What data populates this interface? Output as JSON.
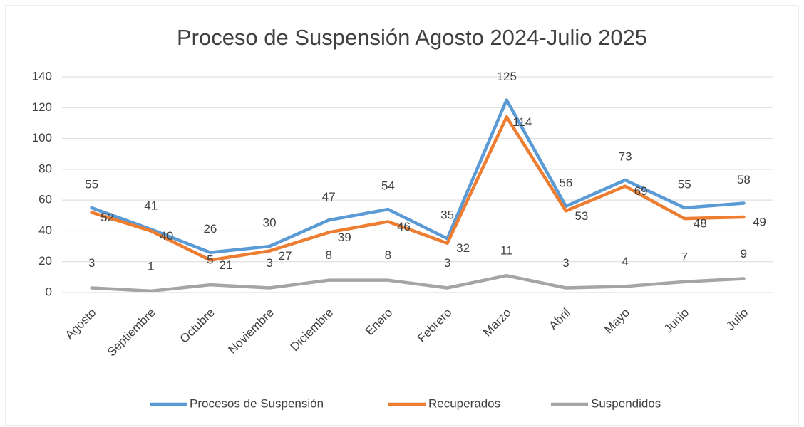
{
  "chart_data": {
    "type": "line",
    "title": "Proceso de Suspensión Agosto 2024-Julio 2025",
    "categories": [
      "Agosto",
      "Septiembre",
      "Octubre",
      "Noviembre",
      "Diciembre",
      "Enero",
      "Febrero",
      "Marzo",
      "Abril",
      "Mayo",
      "Junio",
      "Julio"
    ],
    "series": [
      {
        "name": "Procesos de Suspensión",
        "color": "#5b9bd5",
        "values": [
          55,
          41,
          26,
          30,
          47,
          54,
          35,
          125,
          56,
          73,
          55,
          58
        ]
      },
      {
        "name": "Recuperados",
        "color": "#ed7d31",
        "values": [
          52,
          40,
          21,
          27,
          39,
          46,
          32,
          114,
          53,
          69,
          48,
          49
        ]
      },
      {
        "name": "Suspendidos",
        "color": "#a5a5a5",
        "values": [
          3,
          1,
          5,
          3,
          8,
          8,
          3,
          11,
          3,
          4,
          7,
          9
        ]
      }
    ],
    "ylim": [
      0,
      140
    ],
    "yticks": [
      0,
      20,
      40,
      60,
      80,
      100,
      120,
      140
    ],
    "grid": true,
    "legend": "bottom"
  }
}
